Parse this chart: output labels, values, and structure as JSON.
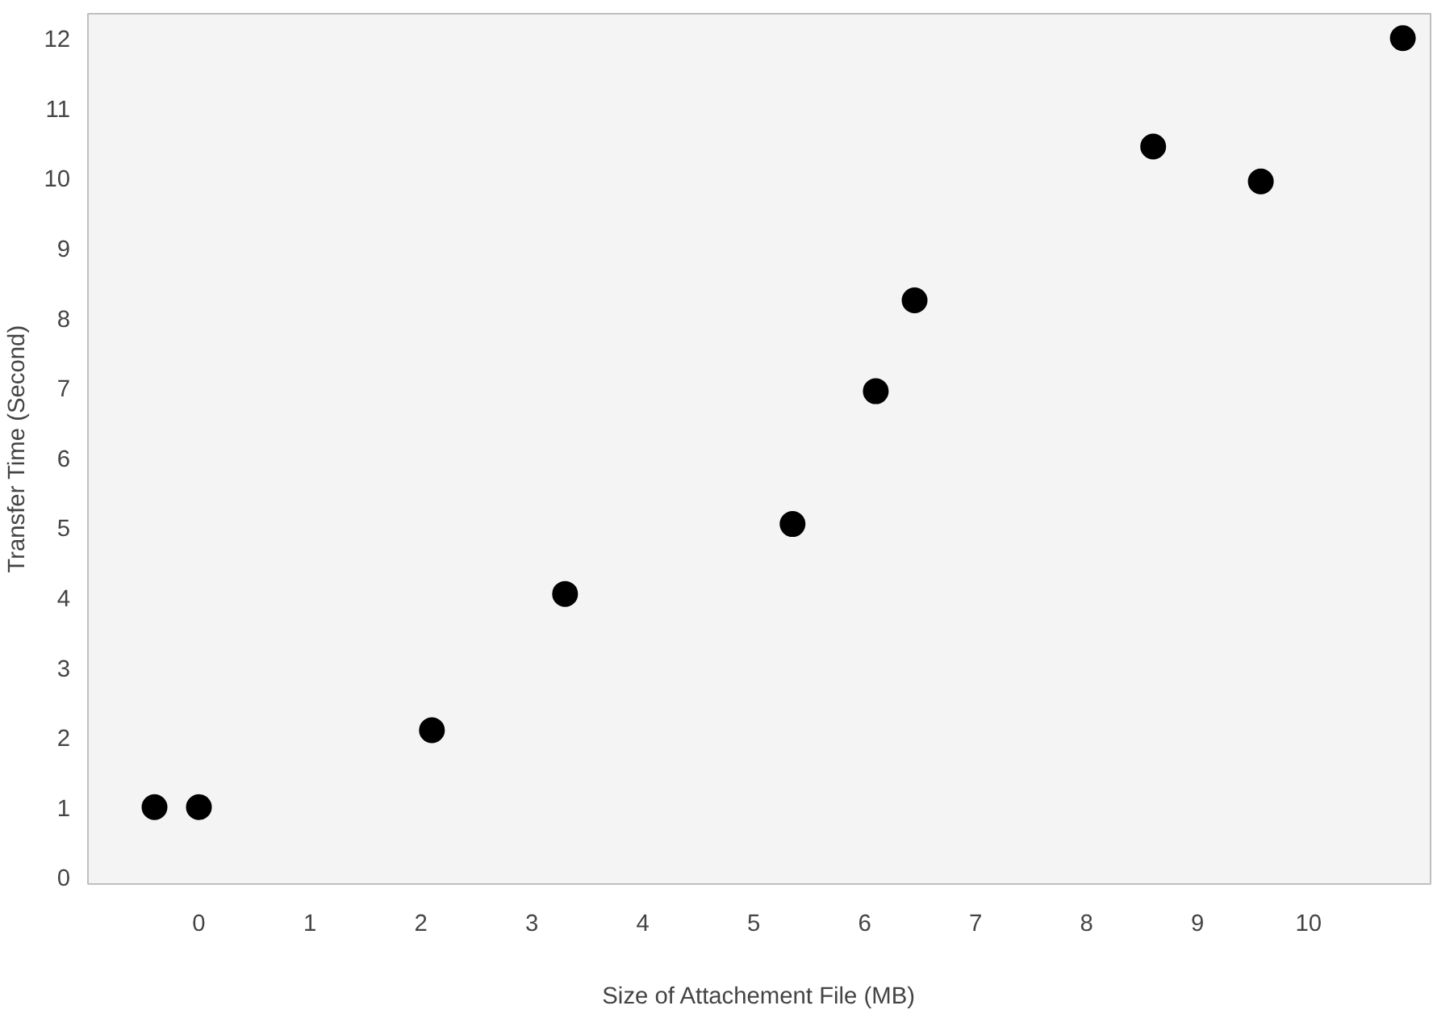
{
  "chart_data": {
    "type": "scatter",
    "xlabel": "Size of Attachement File (MB)",
    "ylabel": "Transfer Time (Second)",
    "x": [
      -0.4,
      0,
      2.1,
      3.3,
      5.35,
      6.1,
      6.45,
      8.6,
      9.57,
      10.85
    ],
    "values": [
      1,
      1,
      2.1,
      4.05,
      5.05,
      6.95,
      8.25,
      10.45,
      9.95,
      12
    ],
    "color": "#000000",
    "marker": "circle",
    "xlim": [
      -1,
      11.1
    ],
    "ylim": [
      -0.1,
      12.35
    ],
    "xticks": [
      0,
      1,
      2,
      3,
      4,
      5,
      6,
      7,
      8,
      9,
      10
    ],
    "yticks": [
      0,
      1,
      2,
      3,
      4,
      5,
      6,
      7,
      8,
      9,
      10,
      11,
      12
    ],
    "grid": false
  }
}
